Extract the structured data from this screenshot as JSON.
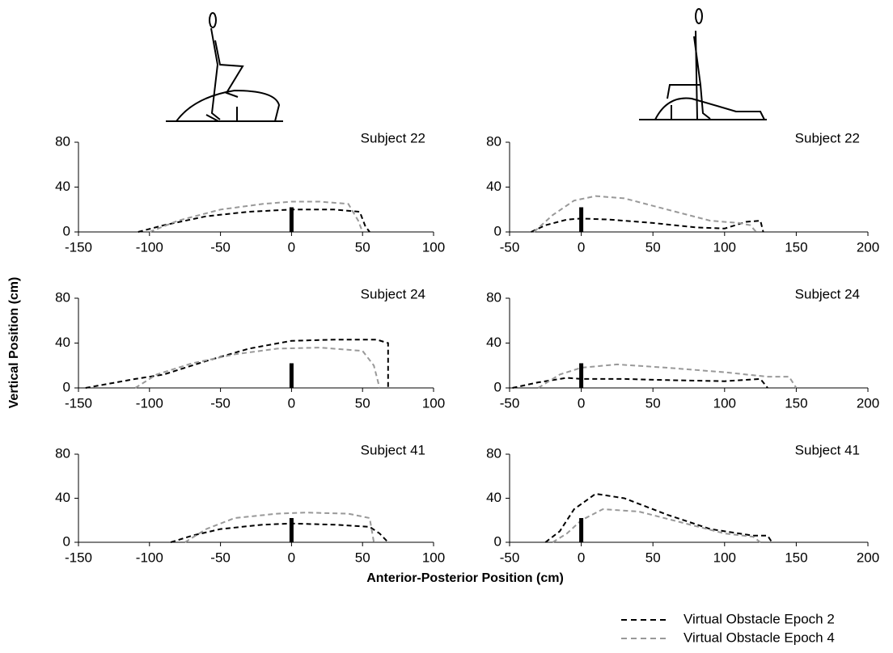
{
  "y_label": "Vertical Position (cm)",
  "x_label": "Anterior-Posterior Position (cm)",
  "chart_data": [
    {
      "type": "line",
      "title": "Subject 22",
      "xlim": [
        -150,
        100
      ],
      "xticks": [
        -150,
        -100,
        -50,
        0,
        50,
        100
      ],
      "ylim": [
        0,
        80
      ],
      "yticks": [
        0,
        40,
        80
      ],
      "obstacle_height": 22,
      "series": [
        {
          "name": "Virtual Obstacle Epoch 2",
          "color": "#000000",
          "x": [
            -108,
            -90,
            -60,
            -30,
            0,
            30,
            48,
            52,
            55
          ],
          "values": [
            0,
            6,
            14,
            18,
            20,
            20,
            18,
            5,
            0
          ]
        },
        {
          "name": "Virtual Obstacle Epoch 4",
          "color": "#999999",
          "x": [
            -100,
            -80,
            -50,
            -20,
            0,
            20,
            40,
            47,
            50
          ],
          "values": [
            0,
            10,
            20,
            25,
            27,
            27,
            25,
            10,
            0
          ]
        }
      ]
    },
    {
      "type": "line",
      "title": "Subject 22",
      "xlim": [
        -50,
        200
      ],
      "xticks": [
        -50,
        0,
        50,
        100,
        150,
        200
      ],
      "ylim": [
        0,
        80
      ],
      "yticks": [
        0,
        40,
        80
      ],
      "obstacle_height": 22,
      "series": [
        {
          "name": "Virtual Obstacle Epoch 2",
          "color": "#000000",
          "x": [
            -35,
            -25,
            -10,
            0,
            20,
            50,
            80,
            100,
            115,
            125,
            127
          ],
          "values": [
            0,
            6,
            11,
            12,
            11,
            8,
            4,
            3,
            9,
            10,
            0
          ]
        },
        {
          "name": "Virtual Obstacle Epoch 4",
          "color": "#999999",
          "x": [
            -33,
            -20,
            -5,
            10,
            30,
            60,
            90,
            110,
            118,
            122
          ],
          "values": [
            0,
            15,
            28,
            32,
            30,
            20,
            10,
            8,
            6,
            0
          ]
        }
      ]
    },
    {
      "type": "line",
      "title": "Subject 24",
      "xlim": [
        -150,
        100
      ],
      "xticks": [
        -150,
        -100,
        -50,
        0,
        50,
        100
      ],
      "ylim": [
        0,
        80
      ],
      "yticks": [
        0,
        40,
        80
      ],
      "obstacle_height": 22,
      "series": [
        {
          "name": "Virtual Obstacle Epoch 2",
          "color": "#000000",
          "x": [
            -145,
            -110,
            -90,
            -60,
            -30,
            0,
            30,
            60,
            68,
            68
          ],
          "values": [
            0,
            8,
            12,
            24,
            35,
            42,
            43,
            43,
            40,
            0
          ]
        },
        {
          "name": "Virtual Obstacle Epoch 4",
          "color": "#999999",
          "x": [
            -110,
            -95,
            -70,
            -40,
            -10,
            20,
            50,
            58,
            62
          ],
          "values": [
            0,
            12,
            22,
            30,
            35,
            36,
            33,
            20,
            0
          ]
        }
      ]
    },
    {
      "type": "line",
      "title": "Subject 24",
      "xlim": [
        -50,
        200
      ],
      "xticks": [
        -50,
        0,
        50,
        100,
        150,
        200
      ],
      "ylim": [
        0,
        80
      ],
      "yticks": [
        0,
        40,
        80
      ],
      "obstacle_height": 22,
      "series": [
        {
          "name": "Virtual Obstacle Epoch 2",
          "color": "#000000",
          "x": [
            -48,
            -30,
            -10,
            0,
            30,
            60,
            100,
            125,
            130
          ],
          "values": [
            0,
            5,
            9,
            8,
            8,
            7,
            6,
            8,
            0
          ]
        },
        {
          "name": "Virtual Obstacle Epoch 4",
          "color": "#999999",
          "x": [
            -30,
            -15,
            0,
            25,
            60,
            100,
            130,
            145,
            150
          ],
          "values": [
            0,
            12,
            18,
            21,
            18,
            14,
            10,
            10,
            0
          ]
        }
      ]
    },
    {
      "type": "line",
      "title": "Subject 41",
      "xlim": [
        -150,
        100
      ],
      "xticks": [
        -150,
        -100,
        -50,
        0,
        50,
        100
      ],
      "ylim": [
        0,
        80
      ],
      "yticks": [
        0,
        40,
        80
      ],
      "obstacle_height": 22,
      "series": [
        {
          "name": "Virtual Obstacle Epoch 2",
          "color": "#000000",
          "x": [
            -85,
            -70,
            -50,
            -20,
            0,
            30,
            55,
            62,
            68
          ],
          "values": [
            0,
            6,
            12,
            16,
            17,
            16,
            14,
            8,
            0
          ]
        },
        {
          "name": "Virtual Obstacle Epoch 4",
          "color": "#999999",
          "x": [
            -75,
            -60,
            -40,
            -10,
            10,
            40,
            55,
            58
          ],
          "values": [
            0,
            12,
            22,
            26,
            27,
            26,
            22,
            0
          ]
        }
      ]
    },
    {
      "type": "line",
      "title": "Subject 41",
      "xlim": [
        -50,
        200
      ],
      "xticks": [
        -50,
        0,
        50,
        100,
        150,
        200
      ],
      "ylim": [
        0,
        80
      ],
      "yticks": [
        0,
        40,
        80
      ],
      "obstacle_height": 22,
      "series": [
        {
          "name": "Virtual Obstacle Epoch 2",
          "color": "#000000",
          "x": [
            -25,
            -15,
            -5,
            10,
            30,
            60,
            90,
            120,
            130,
            133
          ],
          "values": [
            0,
            10,
            30,
            44,
            40,
            25,
            12,
            6,
            6,
            0
          ]
        },
        {
          "name": "Virtual Obstacle Epoch 4",
          "color": "#999999",
          "x": [
            -20,
            -10,
            0,
            15,
            40,
            70,
            100,
            120,
            125
          ],
          "values": [
            0,
            8,
            20,
            30,
            28,
            18,
            8,
            5,
            0
          ]
        }
      ]
    }
  ]
}
